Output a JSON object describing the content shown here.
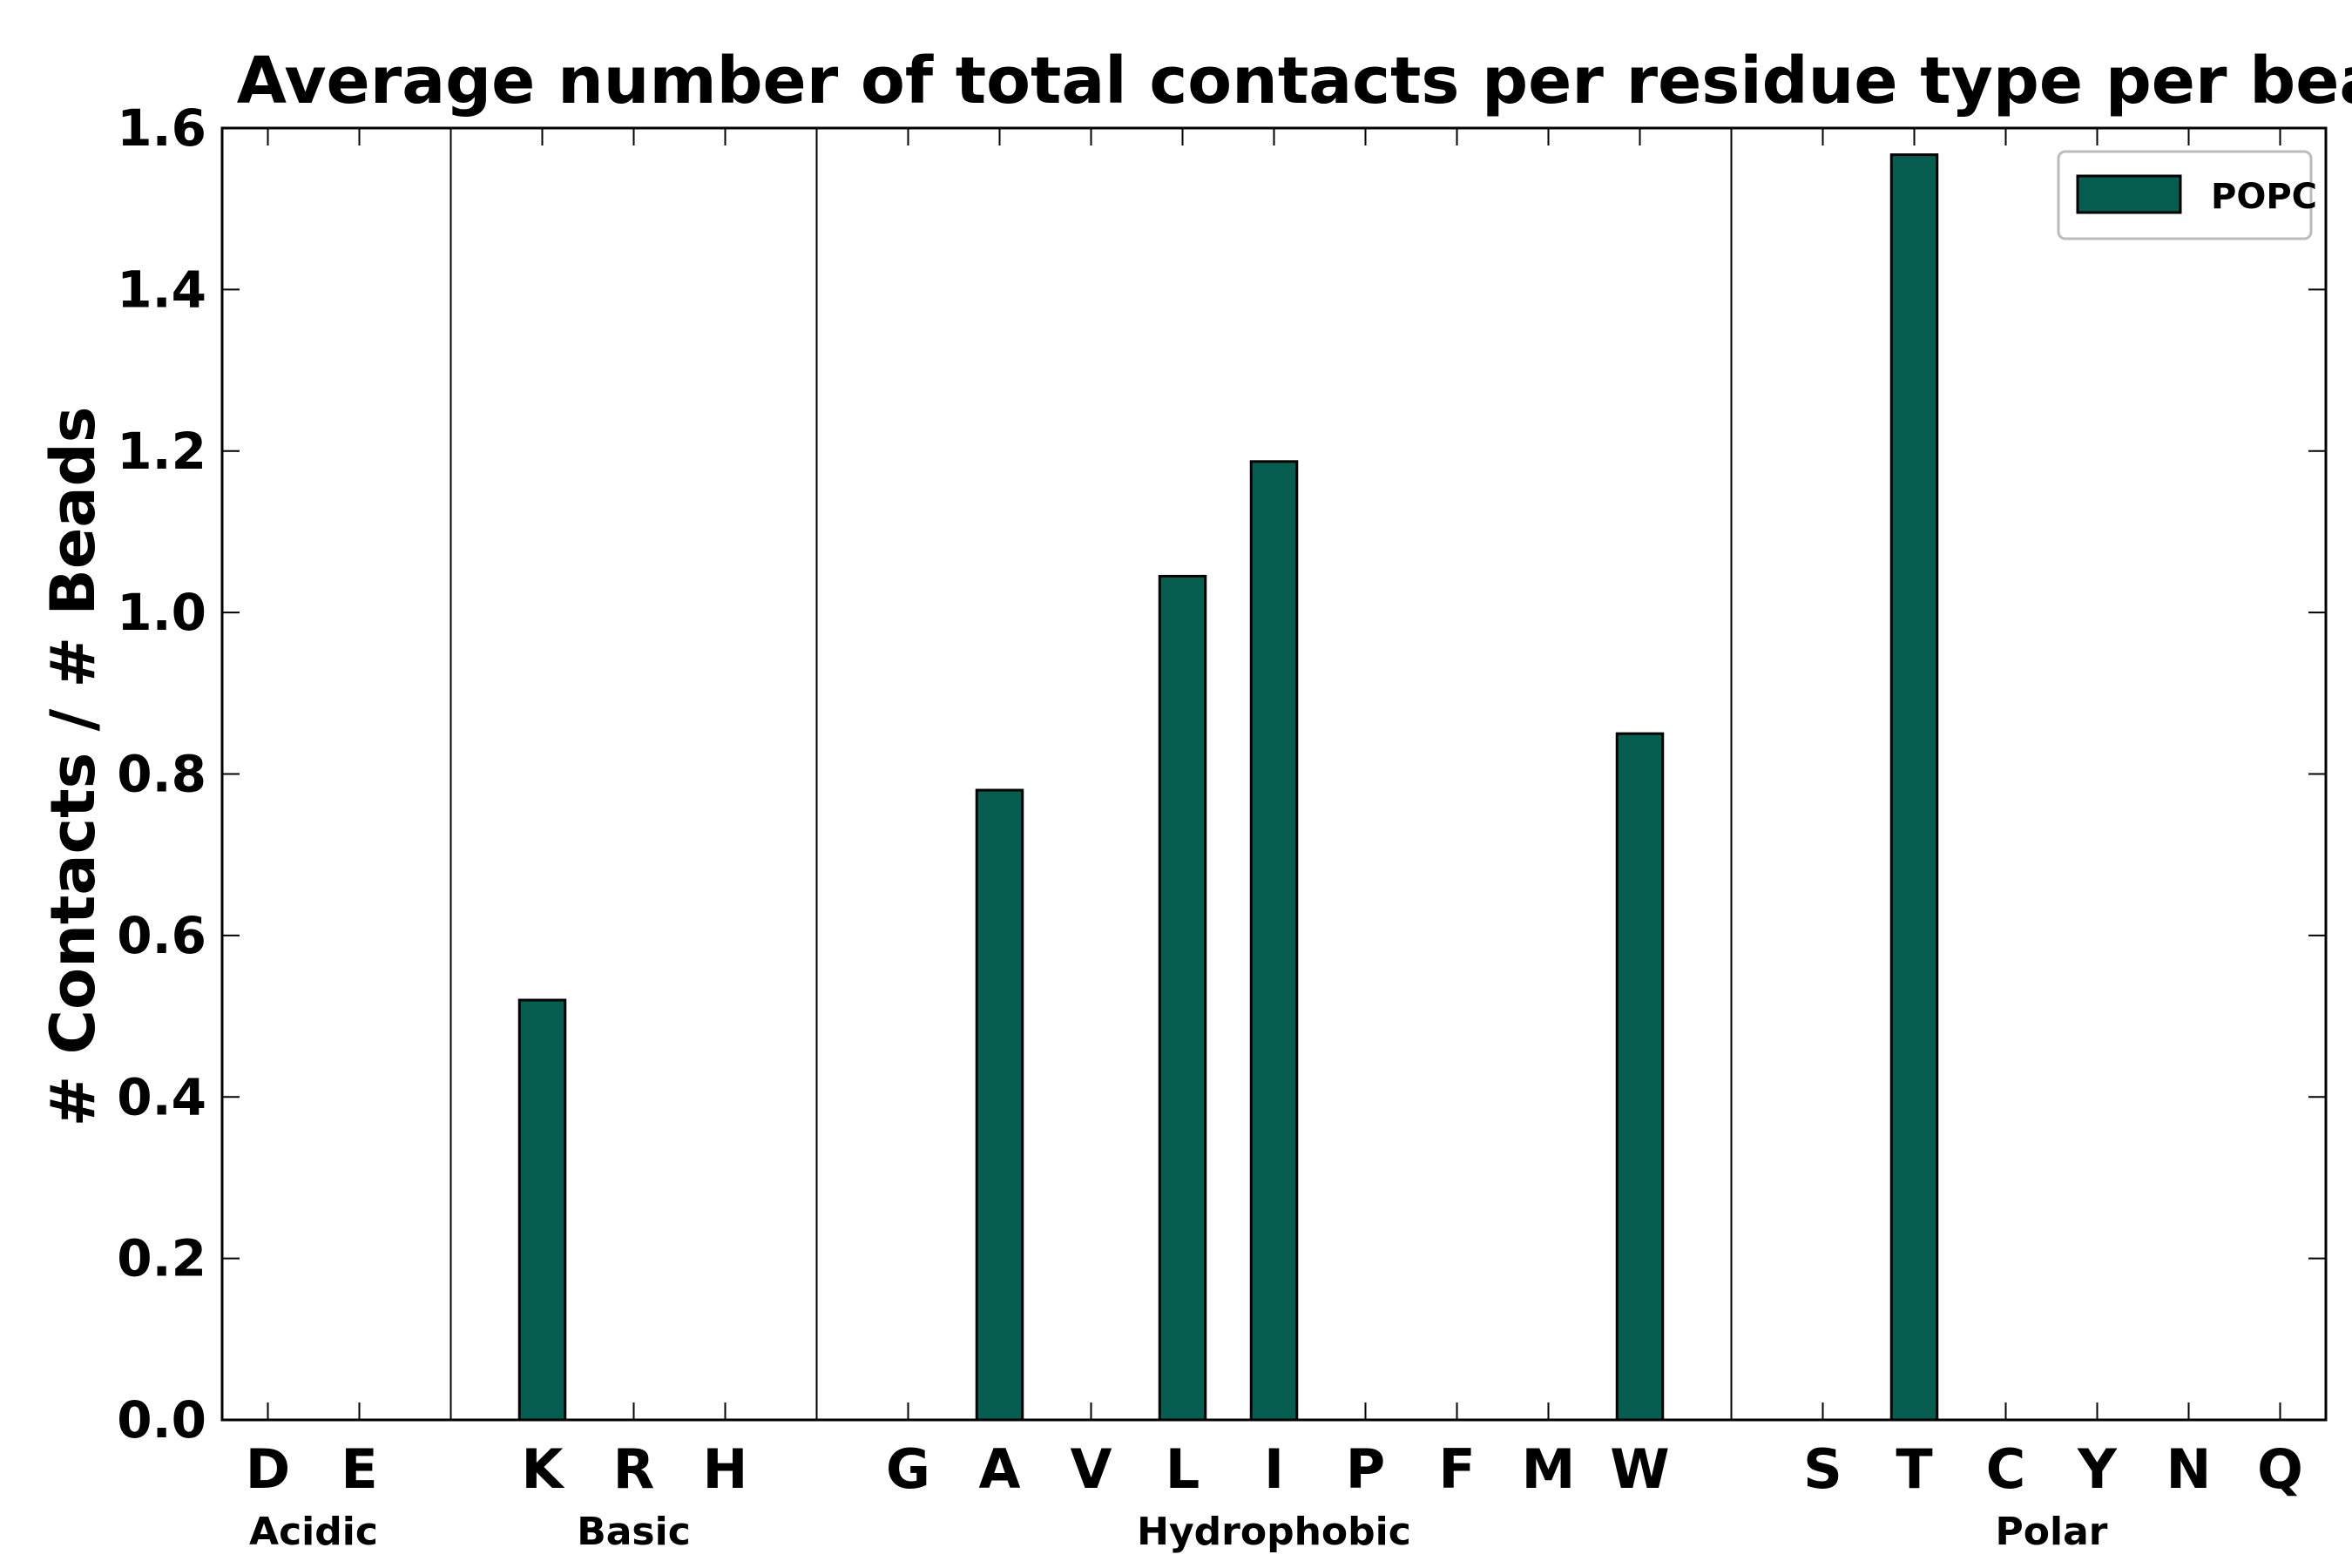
{
  "chart_data": {
    "type": "bar",
    "title": "Average number of total contacts per residue type per bead",
    "xlabel": "",
    "ylabel": "# Contacts / # Beads",
    "ylim": [
      0,
      1.6
    ],
    "yticks": [
      "0.0",
      "0.2",
      "0.4",
      "0.6",
      "0.8",
      "1.0",
      "1.2",
      "1.4",
      "1.6"
    ],
    "grid": false,
    "legend_position": "top-right",
    "bar_color": "#075e50",
    "categories": [
      "D",
      "E",
      "",
      "K",
      "R",
      "H",
      "",
      "G",
      "A",
      "V",
      "L",
      "I",
      "P",
      "F",
      "M",
      "W",
      "",
      "S",
      "T",
      "C",
      "Y",
      "N",
      "Q"
    ],
    "series": [
      {
        "name": "POPC",
        "values": [
          0,
          0,
          0,
          0.52,
          0,
          0,
          0,
          0,
          0.78,
          0,
          1.045,
          1.187,
          0,
          0,
          0,
          0.85,
          0,
          0,
          1.567,
          0,
          0,
          0,
          0
        ]
      }
    ],
    "groups": [
      {
        "label": "Acidic",
        "start": 0,
        "end": 1
      },
      {
        "label": "Basic",
        "start": 3,
        "end": 5
      },
      {
        "label": "Hydrophobic",
        "start": 7,
        "end": 15
      },
      {
        "label": "Polar",
        "start": 17,
        "end": 22
      }
    ],
    "separators_after_index": [
      2,
      6,
      16
    ]
  }
}
